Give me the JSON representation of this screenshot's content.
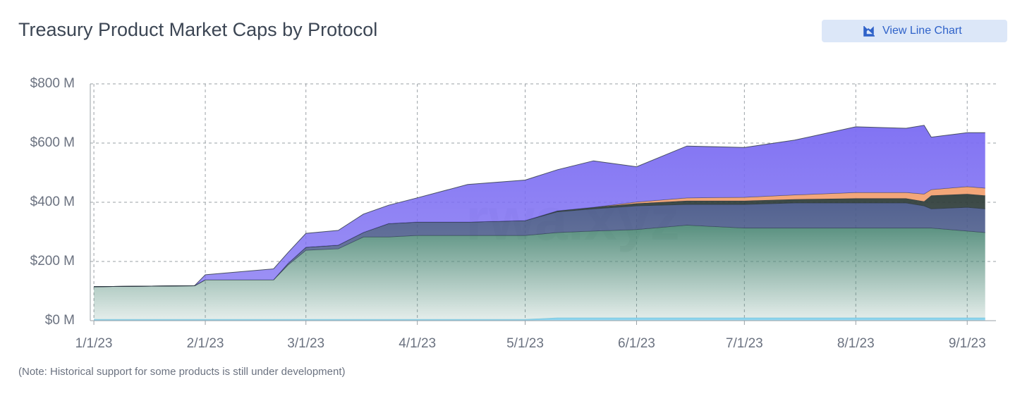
{
  "chart_data": {
    "type": "stacked_area",
    "title": "Treasury Product Market Caps by Protocol",
    "button": "View Line Chart",
    "note": "(Note: Historical support for some products is still under development)",
    "watermark": "rwa.xyz",
    "x": [
      "1/1/23",
      "1/29/23",
      "2/1/23",
      "2/20/23",
      "2/24/23",
      "3/1/23",
      "3/10/23",
      "3/17/23",
      "3/24/23",
      "4/1/23",
      "4/15/23",
      "5/1/23",
      "5/10/23",
      "5/20/23",
      "6/1/23",
      "6/15/23",
      "7/1/23",
      "7/15/23",
      "8/1/23",
      "8/15/23",
      "8/20/23",
      "8/22/23",
      "9/1/23",
      "9/6/23"
    ],
    "xlim": [
      "12/31/22",
      "9/9/23"
    ],
    "xticks": [
      "1/1/23",
      "2/1/23",
      "3/1/23",
      "4/1/23",
      "5/1/23",
      "6/1/23",
      "7/1/23",
      "8/1/23",
      "9/1/23"
    ],
    "ylim": [
      0,
      800
    ],
    "yticks": [
      {
        "value": 0,
        "label": "$0 M"
      },
      {
        "value": 200,
        "label": "$200 M"
      },
      {
        "value": 400,
        "label": "$400 M"
      },
      {
        "value": 600,
        "label": "$600 M"
      },
      {
        "value": 800,
        "label": "$800 M"
      }
    ],
    "grid": true,
    "series": [
      {
        "color": "#7fd0ee",
        "values": [
          3,
          3,
          3,
          3,
          3,
          3,
          3,
          3,
          3,
          3,
          3,
          3,
          8,
          8,
          8,
          8,
          8,
          8,
          8,
          8,
          8,
          8,
          8,
          8
        ]
      },
      {
        "color": "#4f8a78",
        "values": [
          112,
          115,
          135,
          135,
          185,
          235,
          240,
          280,
          280,
          285,
          285,
          285,
          290,
          295,
          300,
          315,
          305,
          305,
          305,
          305,
          305,
          305,
          295,
          290
        ]
      },
      {
        "color": "#4a5a8a",
        "values": [
          0,
          0,
          0,
          0,
          5,
          10,
          12,
          15,
          45,
          45,
          45,
          50,
          70,
          75,
          80,
          70,
          80,
          85,
          85,
          85,
          75,
          65,
          80,
          80
        ]
      },
      {
        "color": "#2f3d3a",
        "values": [
          0,
          0,
          0,
          0,
          0,
          0,
          0,
          0,
          0,
          0,
          0,
          0,
          3,
          5,
          8,
          12,
          12,
          12,
          15,
          15,
          15,
          45,
          45,
          45
        ]
      },
      {
        "color": "#f2a070",
        "values": [
          0,
          0,
          0,
          0,
          0,
          0,
          0,
          0,
          0,
          0,
          0,
          0,
          0,
          0,
          5,
          10,
          12,
          15,
          20,
          20,
          25,
          20,
          25,
          25
        ]
      },
      {
        "color": "#7b6cf2",
        "values": [
          0,
          0,
          17,
          37,
          37,
          47,
          50,
          62,
          62,
          82,
          127,
          137,
          139,
          157,
          119,
          175,
          168,
          185,
          222,
          217,
          232,
          177,
          182,
          187
        ]
      }
    ]
  }
}
